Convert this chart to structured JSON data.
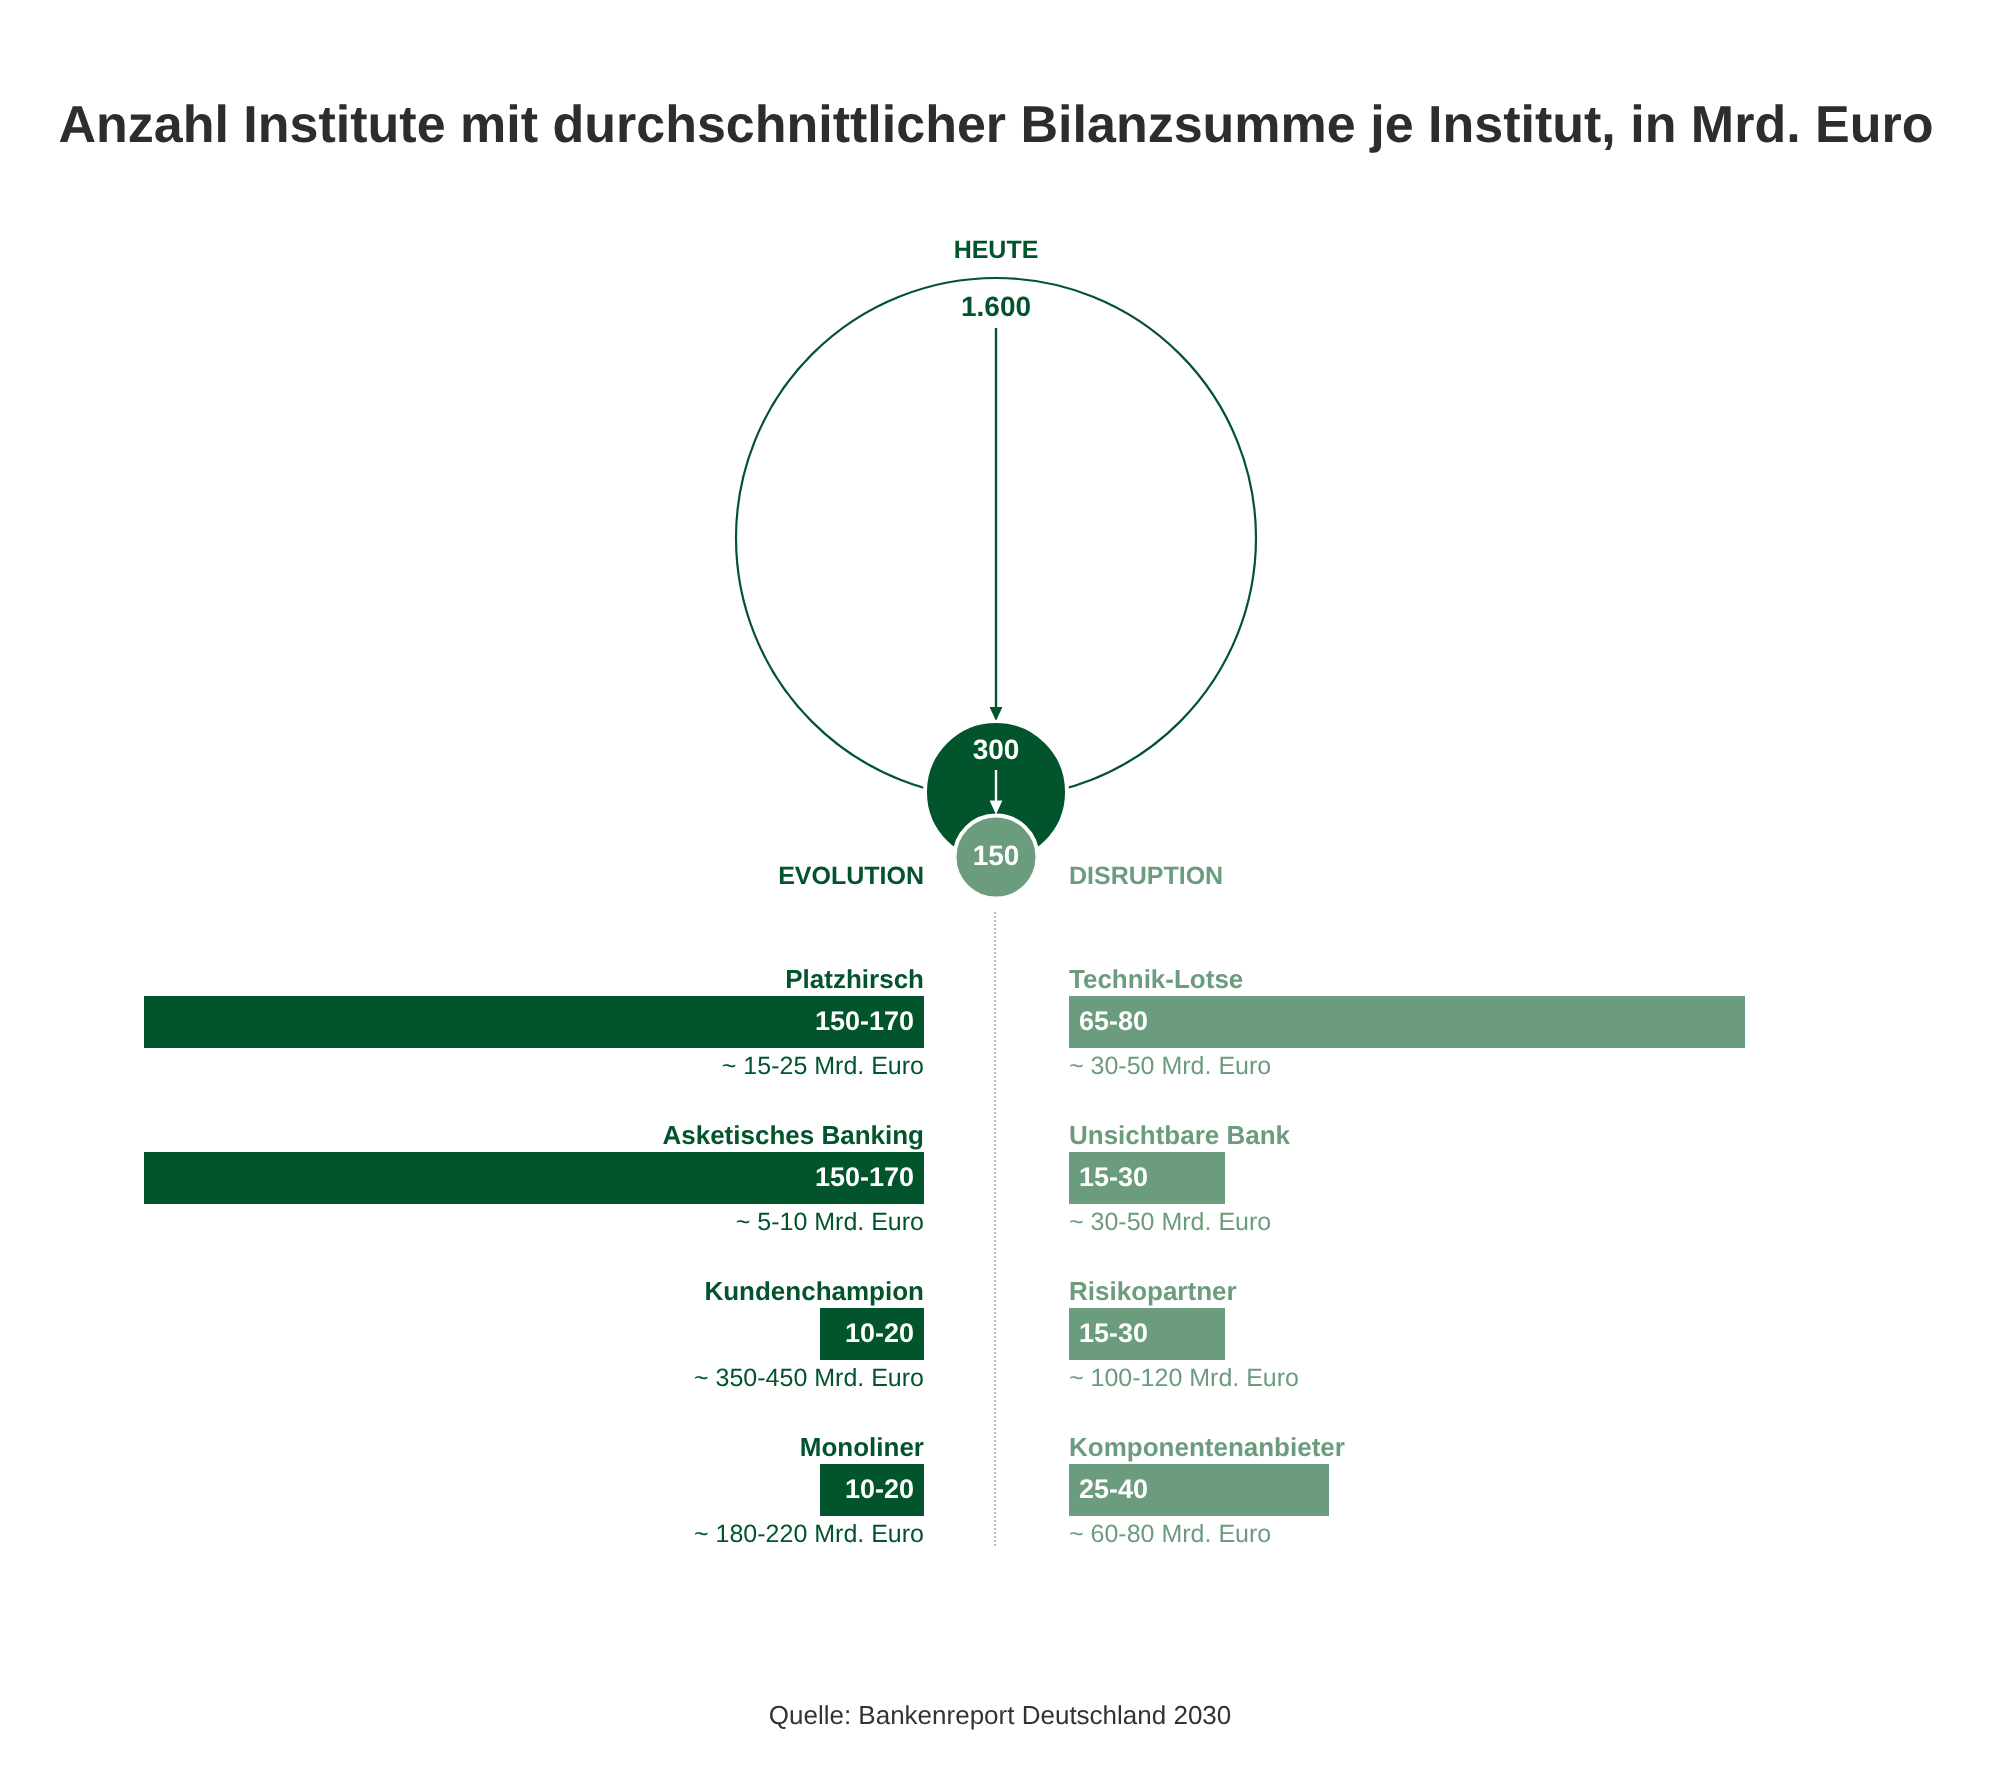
{
  "chart_data": [
    {
      "type": "other",
      "title": "Anzahl Institute mit durchschnittlicher Bilanzsumme je Institut, in Mrd. Euro",
      "categories": [
        "HEUTE",
        null,
        null
      ],
      "values": [
        1600,
        300,
        150
      ],
      "value_labels": [
        "1.600",
        "300",
        "150"
      ],
      "colors": [
        "#ffffff",
        "#02542c",
        "#6b9c7e"
      ],
      "annotations": [
        "Quelle: Bankenreport Deutschland 2030"
      ]
    },
    {
      "type": "bar",
      "orientation": "horizontal",
      "title": "EVOLUTION",
      "categories": [
        "Platzhirsch",
        "Asketisches Banking",
        "Kundenchampion",
        "Monoliner"
      ],
      "values": [
        150,
        150,
        20,
        20
      ],
      "value_labels": [
        "150-170",
        "150-170",
        "10-20",
        "10-20"
      ],
      "color": "#02542c",
      "xlim": [
        150,
        0
      ],
      "tick_labels": "y",
      "annotations": [
        "~ 15-25 Mrd. Euro",
        "~ 5-10 Mrd. Euro",
        "~ 350-450 Mrd. Euro",
        "~ 180-220 Mrd. Euro"
      ]
    },
    {
      "type": "bar",
      "orientation": "horizontal",
      "title": "DISRUPTION",
      "categories": [
        "Technik-Lotse",
        "Unsichtbare Bank",
        "Risikopartner",
        "Komponentenanbieter"
      ],
      "values": [
        65,
        15,
        15,
        25
      ],
      "value_labels": [
        "65-80",
        "15-30",
        "15-30",
        "25-40"
      ],
      "color": "#6b9c7e",
      "xlim": [
        0,
        65
      ],
      "tick_labels": "y",
      "annotations": [
        "~ 30-50 Mrd. Euro",
        "~ 30-50 Mrd. Euro",
        "~ 100-120 Mrd. Euro",
        "~ 60-80 Mrd. Euro"
      ]
    }
  ]
}
